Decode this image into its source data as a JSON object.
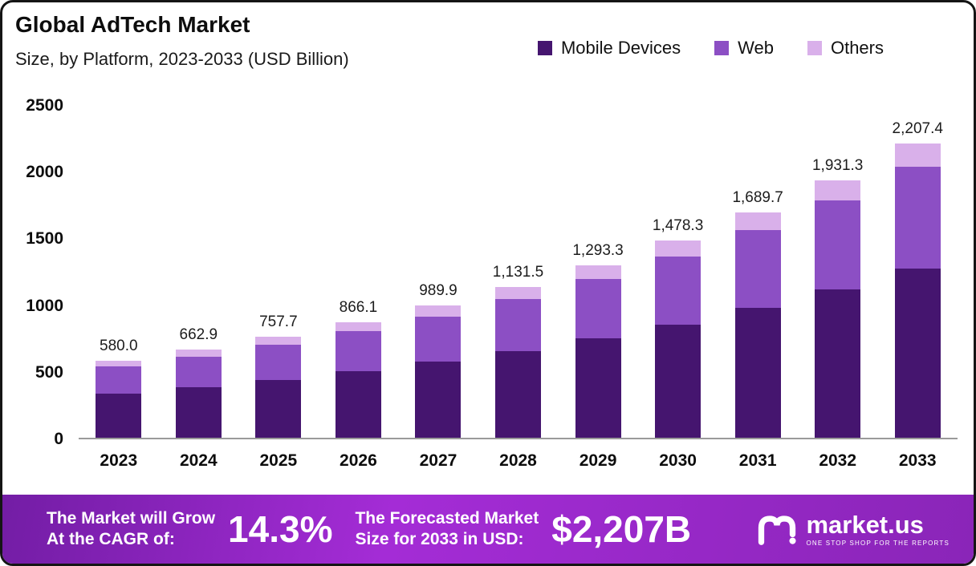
{
  "chart_data": {
    "type": "bar",
    "stacked": true,
    "title": "Global AdTech Market",
    "subtitle": "Size, by Platform, 2023-2033 (USD Billion)",
    "categories": [
      "2023",
      "2024",
      "2025",
      "2026",
      "2027",
      "2028",
      "2029",
      "2030",
      "2031",
      "2032",
      "2033"
    ],
    "totals": [
      580.0,
      662.9,
      757.7,
      866.1,
      989.9,
      1131.5,
      1293.3,
      1478.3,
      1689.7,
      1931.3,
      2207.4
    ],
    "totals_formatted": [
      "580.0",
      "662.9",
      "757.7",
      "866.1",
      "989.9",
      "1,131.5",
      "1,293.3",
      "1,478.3",
      "1,689.7",
      "1,931.3",
      "2,207.4"
    ],
    "series": [
      {
        "name": "Mobile Devices",
        "color": "#45156f",
        "values": [
          333.5,
          381.2,
          435.7,
          498.0,
          569.2,
          650.6,
          743.6,
          850.0,
          971.6,
          1110.5,
          1269.3
        ]
      },
      {
        "name": "Web",
        "color": "#8c4fc4",
        "values": [
          200.1,
          228.7,
          261.4,
          298.8,
          341.5,
          390.4,
          446.2,
          510.0,
          583.0,
          666.3,
          761.6
        ]
      },
      {
        "name": "Others",
        "color": "#d9b0ea",
        "values": [
          46.4,
          53.0,
          60.6,
          69.3,
          79.2,
          90.5,
          103.5,
          118.3,
          135.1,
          154.5,
          176.5
        ]
      }
    ],
    "ylim": [
      0,
      2500
    ],
    "yticks": [
      0,
      500,
      1000,
      1500,
      2000,
      2500
    ],
    "legend_position": "top-right",
    "grid": false
  },
  "banner": {
    "cagr_label_line1": "The Market will Grow",
    "cagr_label_line2": "At the CAGR of:",
    "cagr_value": "14.3%",
    "forecast_label_line1": "The Forecasted Market",
    "forecast_label_line2": "Size for 2033 in USD:",
    "forecast_value": "$2,207B",
    "brand": "market.us",
    "brand_tagline": "ONE STOP SHOP FOR THE REPORTS"
  },
  "colors": {
    "banner_left": "#731da5",
    "banner_mid": "#a42cd6",
    "banner_right": "#8a25b8",
    "axis_line": "#9a9a9a"
  }
}
